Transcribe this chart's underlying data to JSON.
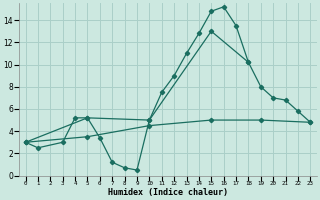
{
  "xlabel": "Humidex (Indice chaleur)",
  "bg_color": "#cce8e0",
  "grid_color": "#aacfc8",
  "line_color": "#1a6e60",
  "xlim": [
    -0.5,
    23.5
  ],
  "ylim": [
    0,
    15.5
  ],
  "xtick_labels": [
    "0",
    "1",
    "2",
    "3",
    "4",
    "5",
    "6",
    "7",
    "8",
    "9",
    "10",
    "11",
    "12",
    "13",
    "14",
    "15",
    "16",
    "17",
    "18",
    "19",
    "20",
    "21",
    "22",
    "23"
  ],
  "xtick_vals": [
    0,
    1,
    2,
    3,
    4,
    5,
    6,
    7,
    8,
    9,
    10,
    11,
    12,
    13,
    14,
    15,
    16,
    17,
    18,
    19,
    20,
    21,
    22,
    23
  ],
  "ytick_vals": [
    0,
    2,
    4,
    6,
    8,
    10,
    12,
    14
  ],
  "s1_x": [
    0,
    1,
    3,
    4,
    5,
    6,
    7,
    8,
    9,
    10,
    11,
    12,
    13,
    14,
    15,
    16,
    17,
    18
  ],
  "s1_y": [
    3.0,
    2.5,
    3.0,
    5.2,
    5.2,
    3.4,
    1.2,
    0.7,
    0.5,
    5.0,
    7.5,
    9.0,
    11.0,
    12.8,
    14.8,
    15.2,
    13.5,
    10.2
  ],
  "s2_x": [
    0,
    5,
    10,
    15,
    18,
    19,
    20,
    21,
    22,
    23
  ],
  "s2_y": [
    3.0,
    5.2,
    5.0,
    13.0,
    10.2,
    8.0,
    7.0,
    6.8,
    5.8,
    4.8
  ],
  "s3_x": [
    0,
    5,
    10,
    15,
    19,
    23
  ],
  "s3_y": [
    3.0,
    3.5,
    4.5,
    5.0,
    5.0,
    4.8
  ]
}
